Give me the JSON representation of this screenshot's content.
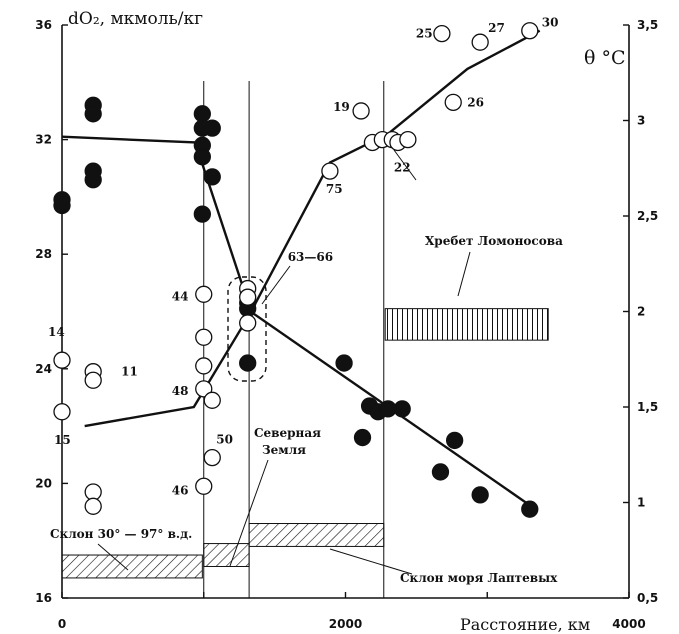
{
  "chart_data": {
    "type": "scatter",
    "title": "",
    "y_left_label": "dO₂, мкмоль/кг",
    "y_right_label": "θ °C",
    "xlabel": "Расстояние, км",
    "xlim": [
      0,
      4000
    ],
    "ylim_left": [
      16,
      36
    ],
    "ylim_right": [
      0.5,
      3.5
    ],
    "x_ticks": [
      "0",
      "2000",
      "4000"
    ],
    "y_left_ticks": [
      "16",
      "20",
      "24",
      "28",
      "32",
      "36"
    ],
    "y_right_ticks": [
      "0,5",
      "1",
      "1,5",
      "2",
      "2,5",
      "3",
      "3,5"
    ],
    "vertical_lines_x": [
      1000,
      1320,
      2270
    ],
    "series": [
      {
        "marker": "filled-circle",
        "axis": "left",
        "points": [
          [
            0,
            29.9
          ],
          [
            0,
            29.7
          ],
          [
            220,
            33.2
          ],
          [
            220,
            32.9
          ],
          [
            220,
            30.9
          ],
          [
            220,
            30.6
          ],
          [
            990,
            32.9
          ],
          [
            990,
            32.4
          ],
          [
            990,
            31.8
          ],
          [
            990,
            31.4
          ],
          [
            990,
            29.4
          ],
          [
            1060,
            32.4
          ],
          [
            1060,
            30.7
          ],
          [
            1310,
            26.3
          ],
          [
            1310,
            26.1
          ],
          [
            1310,
            24.2
          ],
          [
            1990,
            24.2
          ],
          [
            2120,
            21.6
          ],
          [
            2170,
            22.7
          ],
          [
            2230,
            22.5
          ],
          [
            2300,
            22.6
          ],
          [
            2400,
            22.6
          ],
          [
            2670,
            20.4
          ],
          [
            2770,
            21.5
          ],
          [
            2950,
            19.6
          ],
          [
            3300,
            19.1
          ]
        ]
      },
      {
        "marker": "open-circle",
        "axis": "left",
        "points": [
          [
            0,
            24.3
          ],
          [
            0,
            22.5
          ],
          [
            220,
            23.9
          ],
          [
            220,
            23.6
          ],
          [
            220,
            19.7
          ],
          [
            220,
            19.2
          ],
          [
            1000,
            26.6
          ],
          [
            1000,
            25.1
          ],
          [
            1000,
            24.1
          ],
          [
            1000,
            23.3
          ],
          [
            1000,
            19.9
          ],
          [
            1060,
            22.9
          ],
          [
            1060,
            20.9
          ],
          [
            1310,
            26.8
          ],
          [
            1310,
            26.5
          ],
          [
            1310,
            25.6
          ],
          [
            1890,
            30.9
          ],
          [
            2110,
            33.0
          ],
          [
            2190,
            31.9
          ],
          [
            2260,
            32.0
          ],
          [
            2330,
            32.0
          ],
          [
            2370,
            31.9
          ],
          [
            2440,
            32.0
          ],
          [
            2680,
            35.7
          ],
          [
            2760,
            33.3
          ],
          [
            2950,
            35.4
          ],
          [
            3300,
            35.8
          ]
        ]
      },
      {
        "marker": "line",
        "axis": "left",
        "points": [
          [
            0,
            32.1
          ],
          [
            940,
            31.9
          ],
          [
            1320,
            26.2
          ],
          [
            1330,
            26.0
          ],
          [
            3340,
            19.1
          ]
        ]
      },
      {
        "marker": "line",
        "axis": "right",
        "points": [
          [
            160,
            1.4
          ],
          [
            930,
            1.5
          ],
          [
            1320,
            1.98
          ],
          [
            1890,
            2.78
          ],
          [
            2300,
            2.93
          ],
          [
            2860,
            3.27
          ],
          [
            3370,
            3.47
          ]
        ]
      }
    ],
    "point_labels": [
      {
        "text": "14",
        "x": 0,
        "y": 24.3
      },
      {
        "text": "15",
        "x": 0,
        "y": 22.5
      },
      {
        "text": "11",
        "x": 220,
        "y": 23.9
      },
      {
        "text": "44",
        "x": 1000,
        "y": 26.6
      },
      {
        "text": "48",
        "x": 1000,
        "y": 23.3
      },
      {
        "text": "50",
        "x": 1060,
        "y": 20.9
      },
      {
        "text": "46",
        "x": 1000,
        "y": 19.9
      },
      {
        "text": "63—66",
        "x": 1310,
        "y": 26.5
      },
      {
        "text": "19",
        "x": 2110,
        "y": 33.0
      },
      {
        "text": "75",
        "x": 1890,
        "y": 30.9
      },
      {
        "text": "22",
        "x": 2440,
        "y": 32.0
      },
      {
        "text": "25",
        "x": 2680,
        "y": 35.7
      },
      {
        "text": "27",
        "x": 2950,
        "y": 35.4
      },
      {
        "text": "30",
        "x": 3300,
        "y": 35.8
      },
      {
        "text": "26",
        "x": 2760,
        "y": 33.3
      }
    ],
    "annotations": [
      {
        "text": "Хребет Ломоносова",
        "box_x": [
          2280,
          3430
        ],
        "box_y": [
          25.0,
          26.1
        ],
        "pattern": "vertical"
      },
      {
        "text": "Северная",
        "line2": "Земля",
        "box_x": [
          1000,
          1320
        ],
        "box_y": [
          17.1,
          17.9
        ],
        "pattern": "diagonal"
      },
      {
        "text": "Склон 30° — 97° в.д.",
        "box_x": [
          0,
          990
        ],
        "box_y": [
          16.7,
          17.5
        ],
        "pattern": "diagonal"
      },
      {
        "text": "Склон моря Лаптевых",
        "box_x": [
          1320,
          2270
        ],
        "box_y": [
          17.8,
          18.6
        ],
        "pattern": "diagonal"
      }
    ]
  }
}
